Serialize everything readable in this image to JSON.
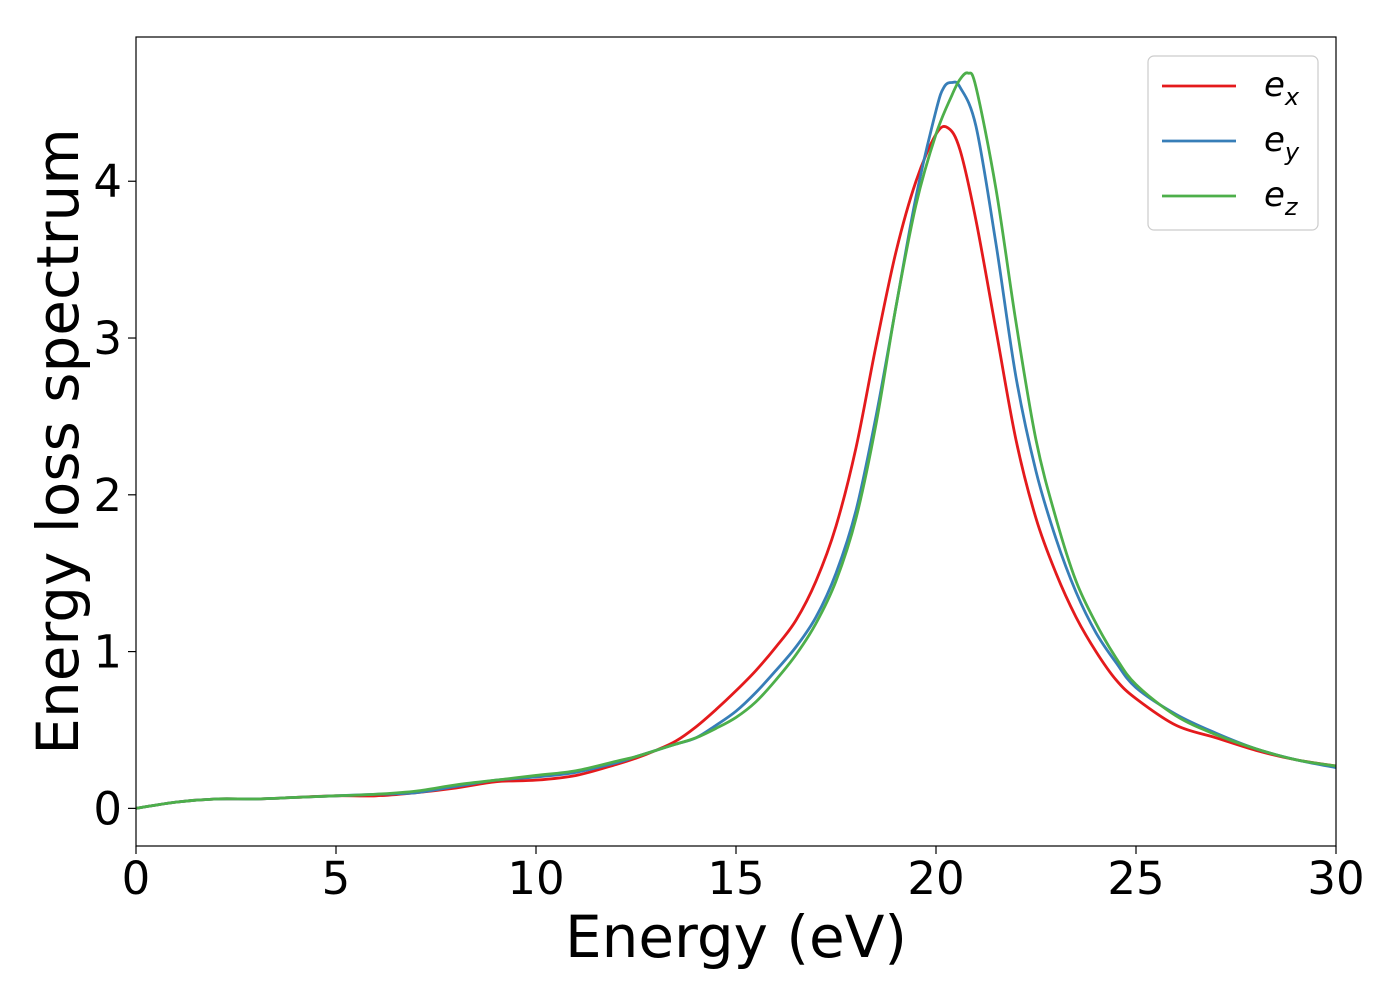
{
  "chart_data": {
    "type": "line",
    "title": "",
    "xlabel": "Energy (eV)",
    "ylabel": "Energy loss spectrum",
    "xlim": [
      0,
      30
    ],
    "ylim": [
      -0.24,
      4.92
    ],
    "xticks": [
      0,
      5,
      10,
      15,
      20,
      25,
      30
    ],
    "yticks": [
      0,
      1,
      2,
      3,
      4
    ],
    "grid": false,
    "legend_position": "top-right",
    "series": [
      {
        "name": "e_x",
        "legend_base": "e",
        "legend_sub": "x",
        "color": "#e41a1c",
        "x": [
          0,
          1,
          2,
          3,
          4,
          5,
          6,
          7,
          8,
          9,
          10,
          11,
          12,
          12.5,
          13,
          13.5,
          14,
          14.5,
          15,
          15.5,
          16,
          16.5,
          17,
          17.5,
          18,
          18.5,
          19,
          19.5,
          20,
          20.3,
          20.6,
          21,
          21.5,
          22,
          22.5,
          23,
          23.5,
          24,
          24.5,
          25,
          26,
          27,
          28,
          29,
          30
        ],
        "y": [
          0.0,
          0.04,
          0.06,
          0.06,
          0.07,
          0.08,
          0.08,
          0.1,
          0.13,
          0.17,
          0.18,
          0.21,
          0.28,
          0.32,
          0.37,
          0.43,
          0.52,
          0.63,
          0.75,
          0.88,
          1.03,
          1.2,
          1.45,
          1.8,
          2.3,
          2.95,
          3.55,
          4.0,
          4.3,
          4.34,
          4.2,
          3.75,
          3.05,
          2.35,
          1.85,
          1.5,
          1.22,
          1.0,
          0.82,
          0.7,
          0.53,
          0.45,
          0.37,
          0.31,
          0.27
        ]
      },
      {
        "name": "e_y",
        "legend_base": "e",
        "legend_sub": "y",
        "color": "#377eb8",
        "x": [
          0,
          1,
          2,
          3,
          4,
          5,
          6,
          7,
          8,
          9,
          10,
          11,
          12,
          12.5,
          13,
          13.5,
          14,
          14.5,
          15,
          15.5,
          16,
          16.5,
          17,
          17.5,
          18,
          18.5,
          19,
          19.5,
          20,
          20.2,
          20.4,
          20.6,
          21,
          21.5,
          22,
          22.5,
          23,
          23.5,
          24,
          24.5,
          25,
          26,
          27,
          28,
          29,
          30
        ],
        "y": [
          0.0,
          0.04,
          0.06,
          0.06,
          0.07,
          0.08,
          0.09,
          0.1,
          0.14,
          0.18,
          0.2,
          0.23,
          0.29,
          0.33,
          0.37,
          0.41,
          0.45,
          0.53,
          0.62,
          0.74,
          0.88,
          1.03,
          1.22,
          1.5,
          1.9,
          2.5,
          3.2,
          3.9,
          4.45,
          4.6,
          4.63,
          4.6,
          4.35,
          3.6,
          2.75,
          2.15,
          1.72,
          1.38,
          1.12,
          0.93,
          0.77,
          0.6,
          0.48,
          0.38,
          0.31,
          0.26
        ]
      },
      {
        "name": "e_z",
        "legend_base": "e",
        "legend_sub": "z",
        "color": "#4daf4a",
        "x": [
          0,
          1,
          2,
          3,
          4,
          5,
          6,
          7,
          8,
          9,
          10,
          11,
          12,
          12.5,
          13,
          13.5,
          14,
          14.5,
          15,
          15.5,
          16,
          16.5,
          17,
          17.5,
          18,
          18.5,
          19,
          19.5,
          20,
          20.4,
          20.6,
          20.8,
          21,
          21.5,
          22,
          22.5,
          23,
          23.5,
          24,
          24.5,
          25,
          26,
          27,
          28,
          29,
          30
        ],
        "y": [
          0.0,
          0.04,
          0.06,
          0.06,
          0.07,
          0.08,
          0.09,
          0.11,
          0.15,
          0.18,
          0.21,
          0.24,
          0.3,
          0.33,
          0.37,
          0.41,
          0.45,
          0.51,
          0.58,
          0.68,
          0.82,
          0.98,
          1.18,
          1.45,
          1.85,
          2.45,
          3.2,
          3.85,
          4.3,
          4.55,
          4.65,
          4.69,
          4.6,
          3.95,
          3.1,
          2.35,
          1.85,
          1.45,
          1.18,
          0.96,
          0.79,
          0.59,
          0.47,
          0.38,
          0.31,
          0.27
        ]
      }
    ]
  }
}
